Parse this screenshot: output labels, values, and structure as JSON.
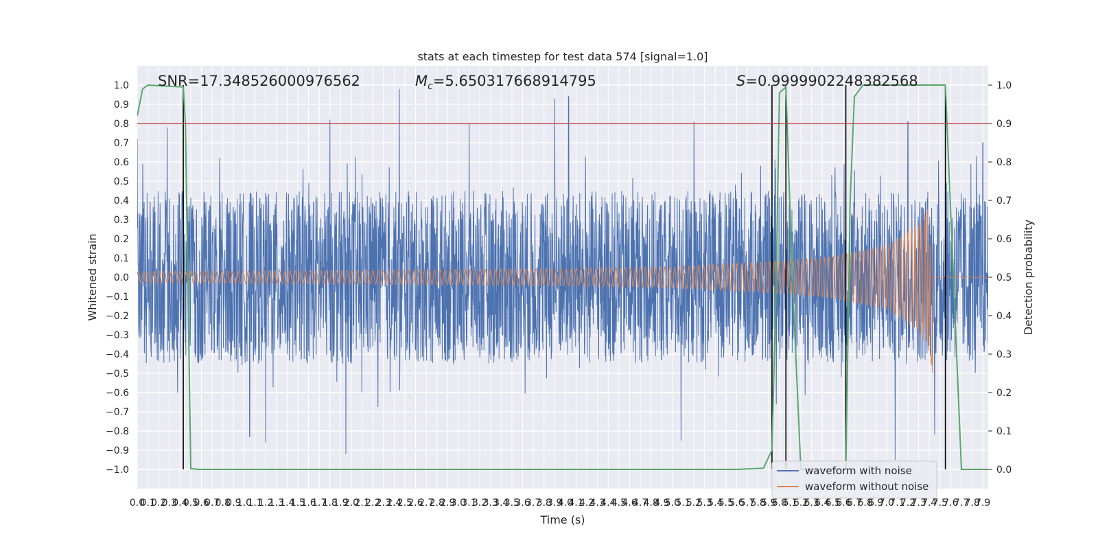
{
  "chart_data": {
    "type": "line",
    "title": "stats at each timestep for test data 574 [signal=1.0]",
    "xlabel": "Time (s)",
    "ylabel": "Whitened strain",
    "ylabel_right": "Detection probability",
    "xlim": [
      0.0,
      7.95
    ],
    "ylim": [
      -1.1,
      1.1
    ],
    "ylim_right": [
      -0.05,
      1.05
    ],
    "x_ticks": [
      "0.0",
      "0.1",
      "0.2",
      "0.3",
      "0.4",
      "0.5",
      "0.6",
      "0.7",
      "0.8",
      "0.9",
      "1.0",
      "1.1",
      "1.2",
      "1.3",
      "1.4",
      "1.5",
      "1.6",
      "1.7",
      "1.8",
      "1.9",
      "2.0",
      "2.1",
      "2.2",
      "2.3",
      "2.4",
      "2.5",
      "2.6",
      "2.7",
      "2.8",
      "2.9",
      "3.0",
      "3.1",
      "3.2",
      "3.3",
      "3.4",
      "3.5",
      "3.6",
      "3.7",
      "3.8",
      "3.9",
      "4.0",
      "4.1",
      "4.2",
      "4.3",
      "4.4",
      "4.5",
      "4.6",
      "4.7",
      "4.8",
      "4.9",
      "5.0",
      "5.1",
      "5.2",
      "5.3",
      "5.4",
      "5.5",
      "5.6",
      "5.7",
      "5.8",
      "5.9",
      "6.0",
      "6.1",
      "6.2",
      "6.3",
      "6.4",
      "6.5",
      "6.6",
      "6.7",
      "6.8",
      "6.9",
      "7.0",
      "7.1",
      "7.2",
      "7.3",
      "7.4",
      "7.5",
      "7.6",
      "7.7",
      "7.8",
      "7.9"
    ],
    "x_tick_display": [
      "0.0",
      "0.1",
      "0.2",
      "0.3",
      "0.4",
      "0.5",
      "0.6",
      "0.7",
      "0.8",
      "0.9",
      "1.0",
      "1.1",
      "1.2",
      "1.3",
      "1.4",
      "1.5",
      "1.6",
      "1.7",
      "1.8",
      "1.9",
      "2.0",
      "2.1",
      "2.2",
      "2.3",
      "2.4",
      "2.5",
      "2.6",
      "2.7",
      "2.8",
      "2.9",
      "3.0",
      "3.1",
      "3.2",
      "3.3",
      "3.4",
      "3.5",
      "3.6",
      "3.7",
      "3.8",
      "3.9",
      "4.0",
      "4.1",
      "4.2",
      "4.3",
      "4.4",
      "4.5",
      "4.6",
      "4.7",
      "4.8",
      "4.9",
      "5.0",
      "5.1",
      "5.2",
      "5.3",
      "5.4",
      "5.5",
      "5.6",
      "5.7",
      "5.8",
      "5.9",
      "6.0",
      "6.1",
      "6.2",
      "6.3",
      "6.4",
      "6.5",
      "6.6",
      "6.7",
      "6.8",
      "6.9",
      "7.0",
      "7.1",
      "7.2",
      "7.3",
      "7.4",
      "7.5",
      "7.6",
      "7.7",
      "7.8",
      "7.9"
    ],
    "y_ticks": [
      "1.0",
      "0.9",
      "0.8",
      "0.7",
      "0.6",
      "0.5",
      "0.4",
      "0.3",
      "0.2",
      "0.1",
      "0.0",
      "−0.1",
      "−0.2",
      "−0.3",
      "−0.4",
      "−0.5",
      "−0.6",
      "−0.7",
      "−0.8",
      "−0.9",
      "−1.0"
    ],
    "y_tick_values": [
      1.0,
      0.9,
      0.8,
      0.7,
      0.6,
      0.5,
      0.4,
      0.3,
      0.2,
      0.1,
      0.0,
      -0.1,
      -0.2,
      -0.3,
      -0.4,
      -0.5,
      -0.6,
      -0.7,
      -0.8,
      -0.9,
      -1.0
    ],
    "y_ticks_right": [
      "1.0",
      "0.9",
      "0.8",
      "0.7",
      "0.6",
      "0.5",
      "0.4",
      "0.3",
      "0.2",
      "0.1",
      "0.0"
    ],
    "y_tick_values_right": [
      1.0,
      0.9,
      0.8,
      0.7,
      0.6,
      0.5,
      0.4,
      0.3,
      0.2,
      0.1,
      0.0
    ],
    "annotations": {
      "snr": "SNR=17.348526000976562",
      "mc_symbol": "M",
      "mc_sub": "c",
      "mc_value": "=5.650317668914795",
      "s_symbol": "S",
      "s_value": "=0.9999902248382568"
    },
    "threshold": {
      "value": 0.9,
      "axis": "right",
      "color": "#c44e52"
    },
    "detection_boundaries": [
      0.43,
      5.93,
      6.06,
      6.62,
      7.55
    ],
    "series": [
      {
        "name": "waveform with noise",
        "color": "#4c72b0",
        "description": "noise envelope approx ±0.45 with spikes",
        "spikes": [
          [
            0.0,
            0.72
          ],
          [
            0.28,
            0.78
          ],
          [
            1.8,
            0.82
          ],
          [
            2.45,
            0.98
          ],
          [
            3.1,
            0.8
          ],
          [
            3.9,
            0.93
          ],
          [
            4.03,
            0.94
          ],
          [
            5.2,
            0.81
          ],
          [
            7.2,
            0.81
          ],
          [
            7.9,
            0.7
          ],
          [
            1.05,
            -0.83
          ],
          [
            1.2,
            -0.86
          ],
          [
            1.95,
            -0.92
          ],
          [
            5.08,
            -0.85
          ],
          [
            7.08,
            -0.95
          ],
          [
            7.45,
            -0.82
          ]
        ]
      },
      {
        "name": "waveform without noise",
        "color": "#dd8452",
        "description": "chirp amplitude rising from 0.03 to merger at 7.43 s",
        "amplitude_points": [
          [
            0.0,
            0.03
          ],
          [
            2.0,
            0.035
          ],
          [
            4.0,
            0.045
          ],
          [
            5.0,
            0.055
          ],
          [
            6.0,
            0.085
          ],
          [
            6.5,
            0.11
          ],
          [
            7.0,
            0.17
          ],
          [
            7.3,
            0.28
          ],
          [
            7.43,
            0.42
          ]
        ],
        "merger_time": 7.43
      },
      {
        "name": "detection probability",
        "color": "#55a868",
        "axis": "right",
        "points": [
          [
            0.0,
            0.92
          ],
          [
            0.05,
            0.99
          ],
          [
            0.1,
            1.0
          ],
          [
            0.43,
            0.995
          ],
          [
            0.45,
            0.9
          ],
          [
            0.5,
            0.002
          ],
          [
            0.58,
            0.0
          ],
          [
            5.6,
            0.0
          ],
          [
            5.85,
            0.003
          ],
          [
            5.93,
            0.05
          ],
          [
            5.97,
            0.5
          ],
          [
            6.0,
            0.98
          ],
          [
            6.06,
            0.995
          ],
          [
            6.12,
            0.5
          ],
          [
            6.2,
            0.0
          ],
          [
            6.62,
            0.0
          ],
          [
            6.66,
            0.7
          ],
          [
            6.7,
            0.97
          ],
          [
            6.78,
            1.0
          ],
          [
            7.55,
            1.0
          ],
          [
            7.7,
            0.0
          ],
          [
            7.95,
            0.0
          ]
        ]
      }
    ],
    "legend": {
      "position": "lower-right",
      "entries": [
        {
          "label": "waveform with noise",
          "color": "#4c72b0"
        },
        {
          "label": "waveform without noise",
          "color": "#dd8452"
        }
      ]
    }
  }
}
